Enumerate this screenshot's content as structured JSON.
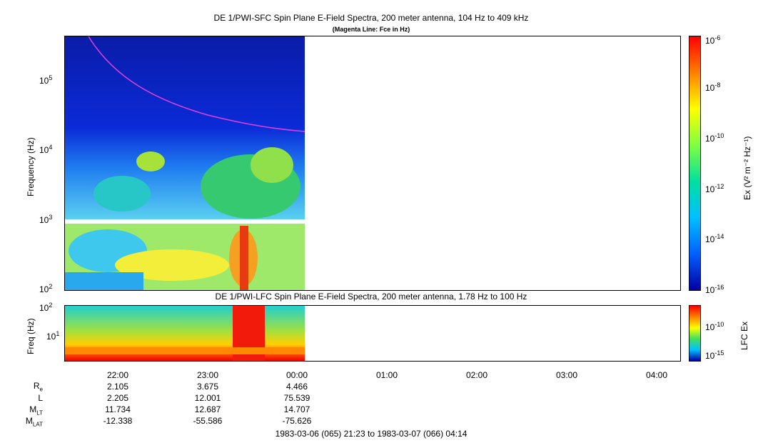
{
  "upper": {
    "title": "DE 1/PWI-SFC  Spin Plane E-Field Spectra, 200 meter antenna, 104 Hz to 409 kHz",
    "subtitle": "(Magenta Line: Fce in Hz)",
    "ylabel": "Frequency (Hz)",
    "yticks": [
      "10",
      "10",
      "10",
      "10"
    ],
    "yexp": [
      "5",
      "4",
      "3",
      "2"
    ],
    "colorbar_label": "Ex (V² m⁻² Hz⁻¹)",
    "colorbar_ticks": [
      "10",
      "10",
      "10",
      "10",
      "10",
      "10"
    ],
    "colorbar_exp": [
      "-6",
      "-8",
      "-10",
      "-12",
      "-14",
      "-16"
    ]
  },
  "lower": {
    "title": "DE 1/PWI-LFC  Spin Plane E-Field Spectra, 200 meter antenna, 1.78 Hz to 100 Hz",
    "ylabel": "Freq (Hz)",
    "yticks": [
      "10",
      "10"
    ],
    "yexp": [
      "2",
      "1"
    ],
    "colorbar_label": "LFC Ex",
    "colorbar_ticks": [
      "10",
      "10"
    ],
    "colorbar_exp": [
      "-10",
      "-15"
    ]
  },
  "xaxis": {
    "ticks": [
      "22:00",
      "23:00",
      "00:00",
      "01:00",
      "02:00",
      "03:00",
      "04:00"
    ]
  },
  "ephemeris": {
    "labels": [
      "R",
      "L",
      "M",
      "M"
    ],
    "subs": [
      "e",
      "",
      "LT",
      "LAT"
    ],
    "columns": [
      [
        "2.105",
        "2.205",
        "11.734",
        "-12.338"
      ],
      [
        "3.675",
        "12.001",
        "12.687",
        "-55.586"
      ],
      [
        "4.466",
        "75.539",
        "14.707",
        "-75.626"
      ]
    ]
  },
  "footer": "1983-03-06 (065) 21:23 to 1983-03-07 (066) 04:14",
  "chart_data": [
    {
      "type": "heatmap",
      "title": "DE 1/PWI-SFC  Spin Plane E-Field Spectra, 200 meter antenna, 104 Hz to 409 kHz",
      "xlabel": "",
      "ylabel": "Frequency (Hz)",
      "x_range": [
        "21:23",
        "04:14"
      ],
      "data_end": "00:00",
      "ylim": [
        100,
        409000
      ],
      "yscale": "log",
      "zscale": "log",
      "zlim": [
        1e-16,
        1e-06
      ],
      "colorbar_label": "Ex (V^2 m^-2 Hz^-1)",
      "fce_line": {
        "name": "Fce in Hz",
        "color": "#e040e0",
        "points": [
          [
            "21:38",
            409000
          ],
          [
            "22:00",
            160000
          ],
          [
            "22:30",
            60000
          ],
          [
            "23:00",
            32000
          ],
          [
            "23:30",
            22000
          ],
          [
            "00:00",
            18000
          ]
        ]
      }
    },
    {
      "type": "heatmap",
      "title": "DE 1/PWI-LFC  Spin Plane E-Field Spectra, 200 meter antenna, 1.78 Hz to 100 Hz",
      "ylabel": "Freq (Hz)",
      "x_range": [
        "21:23",
        "04:14"
      ],
      "data_end": "00:00",
      "ylim": [
        1.78,
        100
      ],
      "yscale": "log",
      "zscale": "log",
      "colorbar_label": "LFC Ex"
    }
  ],
  "colors": {
    "magenta": "#e040e0"
  }
}
